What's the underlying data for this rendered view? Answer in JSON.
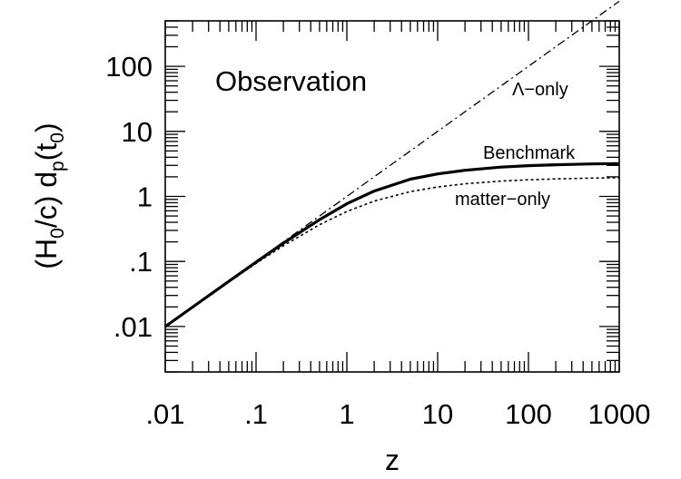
{
  "chart_data": {
    "type": "line",
    "title": "",
    "xlabel": "z",
    "ylabel": {
      "main": "(H",
      "sub0": "0",
      "mid": "/c) d",
      "subp": "p",
      "mid2": "(t",
      "sub1": "0",
      "end": ")"
    },
    "xscale": "log",
    "yscale": "log",
    "xlim": [
      0.01,
      1000
    ],
    "ylim": [
      0.002,
      500
    ],
    "xticks": [
      0.01,
      0.1,
      1,
      10,
      100,
      1000
    ],
    "xtick_labels": [
      ".01",
      ".1",
      "1",
      "10",
      "100",
      "1000"
    ],
    "yticks": [
      0.01,
      0.1,
      1,
      10,
      100
    ],
    "ytick_labels": [
      ".01",
      ".1",
      "1",
      "10",
      "100"
    ],
    "grid": false,
    "annotations": {
      "panel": "Observation",
      "lambda": "Λ−only",
      "benchmark": "Benchmark",
      "matter": "matter−only"
    },
    "x": [
      0.01,
      0.02,
      0.05,
      0.1,
      0.2,
      0.5,
      1,
      2,
      5,
      10,
      20,
      50,
      100,
      200,
      500,
      1000
    ],
    "series": [
      {
        "name": "Benchmark",
        "style": "solid",
        "values": [
          0.00996,
          0.0199,
          0.0494,
          0.0977,
          0.191,
          0.44,
          0.771,
          1.209,
          1.84,
          2.22,
          2.52,
          2.82,
          2.97,
          3.07,
          3.16,
          3.2
        ]
      },
      {
        "name": "matter-only",
        "style": "dotted",
        "values": [
          0.00995,
          0.0198,
          0.0482,
          0.0931,
          0.174,
          0.367,
          0.586,
          0.845,
          1.184,
          1.397,
          1.564,
          1.72,
          1.801,
          1.859,
          1.911,
          1.937
        ]
      },
      {
        "name": "Λ-only",
        "style": "dash-dot",
        "values": [
          0.01,
          0.02,
          0.05,
          0.1,
          0.2,
          0.5,
          1,
          2,
          5,
          10,
          20,
          50,
          100,
          200,
          500,
          1000
        ]
      }
    ]
  }
}
